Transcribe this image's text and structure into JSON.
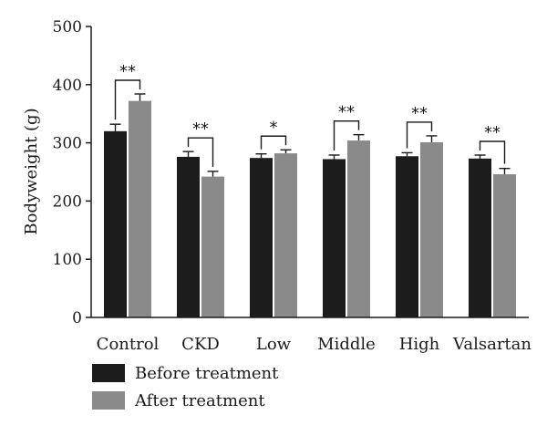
{
  "chart_data": {
    "type": "bar",
    "title": "",
    "xlabel": "",
    "ylabel": "Bodyweight (g)",
    "ylim": [
      0,
      500
    ],
    "yticks": [
      0,
      100,
      200,
      300,
      400,
      500
    ],
    "grid": false,
    "legend_position": "bottom-left",
    "categories": [
      "Control",
      "CKD",
      "Low",
      "Middle",
      "High",
      "Valsartan"
    ],
    "series": [
      {
        "name": "Before treatment",
        "color": "#1c1c1c",
        "values": [
          320,
          276,
          274,
          272,
          277,
          273
        ],
        "errors": [
          12,
          9,
          7,
          7,
          6,
          6
        ]
      },
      {
        "name": "After treatment",
        "color": "#8a8a8a",
        "values": [
          372,
          242,
          282,
          304,
          301,
          246
        ],
        "errors": [
          12,
          9,
          6,
          10,
          11,
          10
        ]
      }
    ],
    "significance": [
      "**",
      "**",
      "*",
      "**",
      "**",
      "**"
    ]
  }
}
